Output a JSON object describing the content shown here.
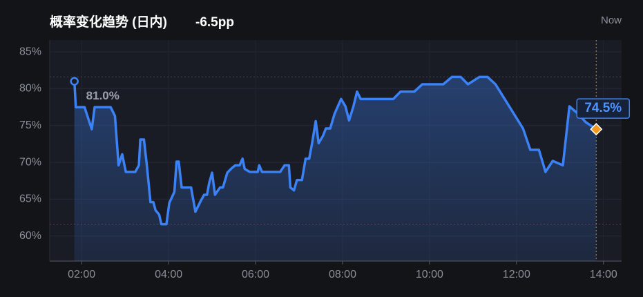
{
  "chart_data": {
    "type": "line",
    "title": "概率变化趋势 (日内)",
    "change": "-6.5pp",
    "now_label": "Now",
    "color": "#3b82f6",
    "x": [
      "01:50",
      "01:52",
      "02:04",
      "02:09",
      "02:14",
      "02:18",
      "02:40",
      "02:46",
      "02:51",
      "02:56",
      "03:01",
      "03:14",
      "03:19",
      "03:21",
      "03:26",
      "03:30",
      "03:35",
      "03:39",
      "03:42",
      "03:47",
      "03:50",
      "03:57",
      "04:01",
      "04:08",
      "04:11",
      "04:14",
      "04:18",
      "04:31",
      "04:37",
      "04:44",
      "04:49",
      "04:53",
      "04:56",
      "05:00",
      "05:04",
      "05:11",
      "05:15",
      "05:21",
      "05:27",
      "05:32",
      "05:38",
      "05:42",
      "05:45",
      "05:52",
      "06:03",
      "06:05",
      "06:09",
      "06:34",
      "06:40",
      "06:46",
      "06:48",
      "06:53",
      "06:57",
      "07:04",
      "07:09",
      "07:14",
      "07:18",
      "07:23",
      "07:27",
      "07:33",
      "07:37",
      "07:43",
      "07:49",
      "07:58",
      "08:04",
      "08:09",
      "08:15",
      "08:20",
      "08:25",
      "09:10",
      "09:20",
      "09:39",
      "09:50",
      "10:19",
      "10:31",
      "10:43",
      "10:53",
      "11:09",
      "11:20",
      "11:31",
      "12:09",
      "12:19",
      "12:31",
      "12:40",
      "12:50",
      "13:04",
      "13:13",
      "13:26",
      "13:35",
      "13:50"
    ],
    "values": [
      81.0,
      77.5,
      77.5,
      76.0,
      74.5,
      77.5,
      77.5,
      76.3,
      69.6,
      71.1,
      68.7,
      68.7,
      69.6,
      73.1,
      73.1,
      69.6,
      64.6,
      64.6,
      63.5,
      62.9,
      61.6,
      61.6,
      64.5,
      66.0,
      70.1,
      70.1,
      66.6,
      66.6,
      63.3,
      64.7,
      65.6,
      65.6,
      67.2,
      68.6,
      65.6,
      66.6,
      66.6,
      68.6,
      69.2,
      69.6,
      69.6,
      70.5,
      69.1,
      68.7,
      68.7,
      69.6,
      68.7,
      68.7,
      69.6,
      69.6,
      66.6,
      66.2,
      67.6,
      67.6,
      70.5,
      70.5,
      72.6,
      75.6,
      72.6,
      73.6,
      74.6,
      74.6,
      76.6,
      78.6,
      77.6,
      75.7,
      77.6,
      79.6,
      78.6,
      78.6,
      79.6,
      79.6,
      80.6,
      80.6,
      81.6,
      81.6,
      80.6,
      81.6,
      81.6,
      80.6,
      74.6,
      71.7,
      71.7,
      68.7,
      70.2,
      69.6,
      77.6,
      76.5,
      75.5,
      74.5
    ],
    "value_labels": [
      "81.0%",
      null,
      null,
      null,
      null,
      null,
      null,
      null,
      null,
      null,
      null,
      null,
      null,
      null,
      null,
      null,
      null,
      null,
      null,
      null,
      null,
      null,
      null,
      null,
      null,
      null,
      null,
      null,
      null,
      null,
      null,
      null,
      null,
      null,
      null,
      null,
      null,
      null,
      null,
      null,
      null,
      null,
      null,
      null,
      null,
      null,
      null,
      null,
      null,
      null,
      null,
      null,
      null,
      null,
      null,
      null,
      null,
      null,
      null,
      null,
      null,
      null,
      null,
      null,
      null,
      null,
      null,
      null,
      null,
      null,
      null,
      null,
      null,
      null,
      null,
      null,
      null,
      null,
      null,
      null,
      null,
      null,
      null,
      null,
      null,
      null,
      null,
      null,
      null,
      "74.5%"
    ],
    "xlim": [
      "01:16",
      "14:25"
    ],
    "xticks": [
      "02:00",
      "04:00",
      "06:00",
      "08:00",
      "10:00",
      "12:00",
      "14:00"
    ],
    "ylim": [
      56.6,
      86.6
    ],
    "yticks": [
      {
        "value": 60,
        "label": "60%"
      },
      {
        "value": 65,
        "label": "65%"
      },
      {
        "value": 70,
        "label": "70%"
      },
      {
        "value": 75,
        "label": "75%"
      },
      {
        "value": 80,
        "label": "80%"
      },
      {
        "value": 85,
        "label": "85%"
      }
    ],
    "grid": true
  }
}
